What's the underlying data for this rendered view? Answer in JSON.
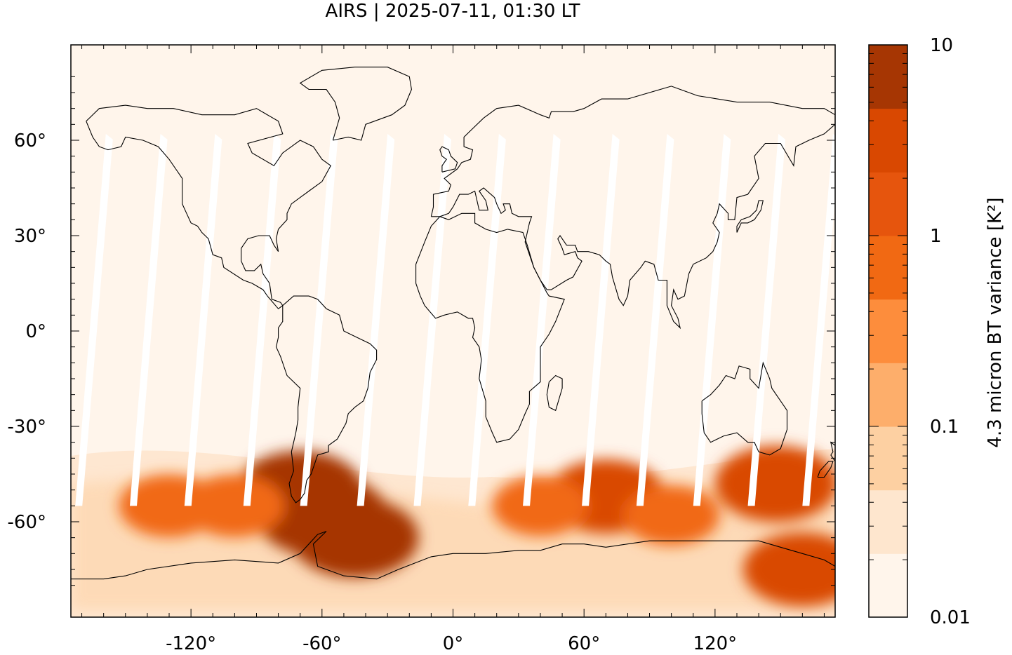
{
  "title": "AIRS | 2025-07-11, 01:30 LT",
  "map": {
    "lon_range": [
      -175,
      175
    ],
    "lat_range": [
      -90,
      90
    ],
    "x_ticks": [
      {
        "value": -120,
        "label": "-120°"
      },
      {
        "value": -60,
        "label": "-60°"
      },
      {
        "value": 0,
        "label": "0°"
      },
      {
        "value": 60,
        "label": "60°"
      },
      {
        "value": 120,
        "label": "120°"
      }
    ],
    "y_ticks": [
      {
        "value": 60,
        "label": "60°"
      },
      {
        "value": 30,
        "label": "30°"
      },
      {
        "value": 0,
        "label": "0°"
      },
      {
        "value": -30,
        "label": "-30°"
      },
      {
        "value": -60,
        "label": "-60°"
      }
    ],
    "background_color": "#fff5eb",
    "coastline_color": "#000000",
    "swath_gap_color": "#ffffff"
  },
  "colorbar": {
    "label": "4.3 micron BT variance [K²]",
    "scale": "log",
    "range": [
      0.01,
      10
    ],
    "tick_labels": [
      {
        "value": 10,
        "label": "10"
      },
      {
        "value": 1,
        "label": "1"
      },
      {
        "value": 0.1,
        "label": "0.1"
      },
      {
        "value": 0.01,
        "label": "0.01"
      }
    ],
    "colors": [
      "#fff5eb",
      "#fee6ce",
      "#fdd0a2",
      "#fdae6b",
      "#fd8d3c",
      "#f16913",
      "#e6550d",
      "#d94801",
      "#a63603"
    ]
  },
  "chart_data": {
    "type": "heatmap",
    "title": "AIRS | 2025-07-11, 01:30 LT",
    "xlabel": "",
    "ylabel": "",
    "xlim": [
      -175,
      175
    ],
    "ylim": [
      -90,
      90
    ],
    "colorbar_label": "4.3 micron BT variance [K²]",
    "colorbar_range": [
      0.01,
      10
    ],
    "colorbar_scale": "log",
    "hotspots": [
      {
        "lon": -60,
        "lat": -58,
        "value": 8
      },
      {
        "lon": -45,
        "lat": -65,
        "value": 6
      },
      {
        "lon": -70,
        "lat": -50,
        "value": 5
      },
      {
        "lon": 148,
        "lat": -48,
        "value": 4
      },
      {
        "lon": 70,
        "lat": -52,
        "value": 3
      },
      {
        "lon": 160,
        "lat": -75,
        "value": 3
      },
      {
        "lon": -130,
        "lat": -55,
        "value": 0.8
      },
      {
        "lon": -100,
        "lat": -55,
        "value": 0.8
      },
      {
        "lon": 40,
        "lat": -55,
        "value": 0.6
      },
      {
        "lon": 100,
        "lat": -58,
        "value": 0.6
      }
    ]
  }
}
